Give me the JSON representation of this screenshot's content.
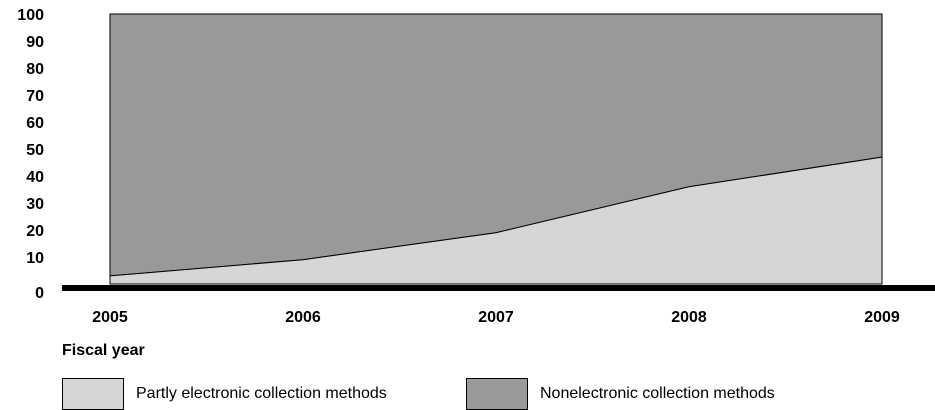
{
  "chart_data": {
    "type": "area",
    "x": [
      "2005",
      "2006",
      "2007",
      "2008",
      "2009"
    ],
    "series": [
      {
        "name": "Partly electronic collection methods",
        "values": [
          3,
          9,
          19,
          36,
          47
        ],
        "color": "#d6d6d6"
      },
      {
        "name": "Nonelectronic collection methods",
        "values": [
          97,
          91,
          81,
          64,
          53
        ],
        "color": "#999999"
      }
    ],
    "stacked": true,
    "ylim": [
      0,
      100
    ],
    "yticks": [
      "0",
      "10",
      "20",
      "30",
      "40",
      "50",
      "60",
      "70",
      "80",
      "90",
      "100"
    ],
    "xlabel": "Fiscal year",
    "ylabel": "",
    "legend_position": "bottom"
  }
}
